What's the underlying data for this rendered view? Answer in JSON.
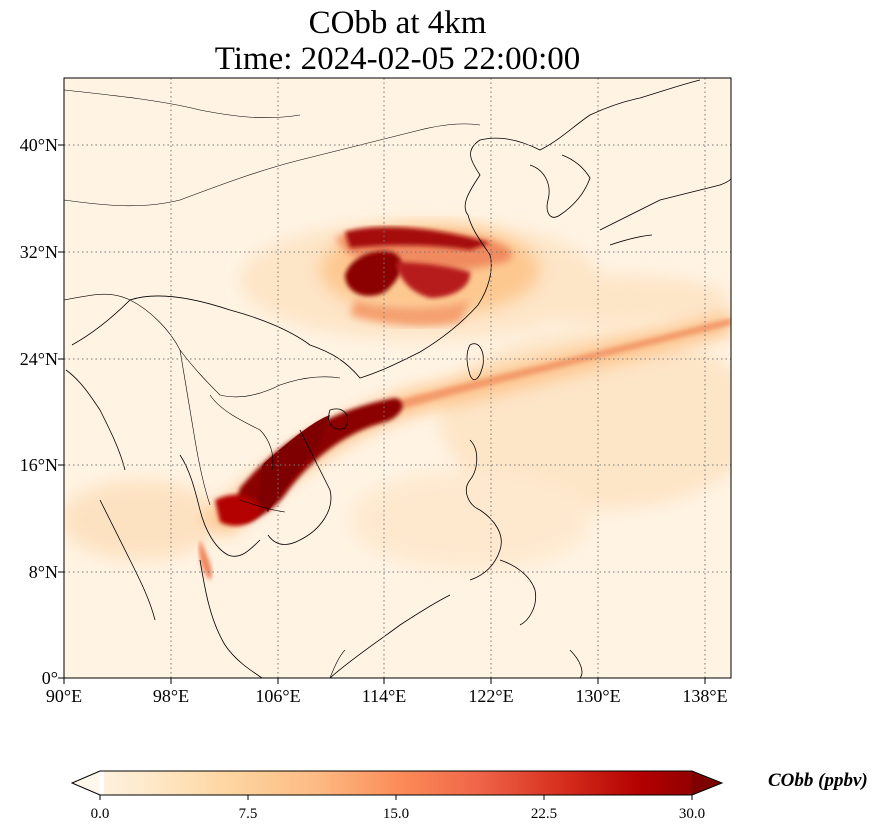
{
  "title": {
    "line1": "CObb at 4km",
    "line2": "Time: 2024-02-05 22:00:00"
  },
  "map": {
    "projection": "PlateCarree",
    "lon_range": [
      90,
      140
    ],
    "lat_range": [
      0,
      44.5
    ],
    "gridlines": "dotted",
    "coastlines": true,
    "country_borders": true,
    "lon_ticks": [
      "90°E",
      "98°E",
      "106°E",
      "114°E",
      "122°E",
      "130°E",
      "138°E"
    ],
    "lat_ticks": [
      "0°",
      "8°N",
      "16°N",
      "24°N",
      "32°N",
      "40°N"
    ]
  },
  "field": {
    "variable": "CObb",
    "units": "ppbv",
    "colormap": "OrRd",
    "plumes": [
      "east China plume (~28-34°N, 110-124°E)",
      "Indochina plume extending northeast to ~27°N, 140°E"
    ]
  },
  "colorbar": {
    "label": "CObb (ppbv)",
    "ticks": [
      "0.0",
      "7.5",
      "15.0",
      "22.5",
      "30.0"
    ],
    "min": 0.0,
    "max": 30.0,
    "extend": "both",
    "colors": [
      "#fff7ec",
      "#fee8c8",
      "#fdd49e",
      "#fdbb84",
      "#fc8d59",
      "#ef6548",
      "#d7301f",
      "#b30000",
      "#7f0000"
    ]
  }
}
